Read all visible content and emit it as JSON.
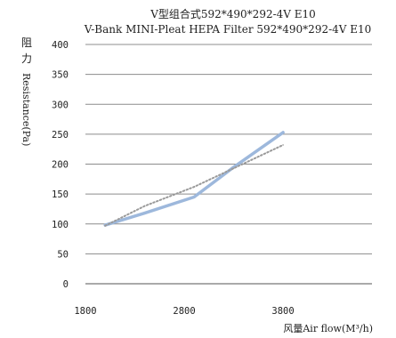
{
  "chart_data": {
    "type": "line",
    "title": "V型组合式592*490*292-4V E10",
    "subtitle": "V-Bank MINI-Pleat HEPA Filter 592*490*292-4V E10",
    "ylabel_cjk": [
      "阻",
      "力"
    ],
    "ylabel": "Resistance(Pa)",
    "xlabel": "风量Air flow(M³/h)",
    "xlim": [
      1800,
      4700
    ],
    "ylim": [
      0,
      400
    ],
    "x_ticks": [
      1800,
      2800,
      3800
    ],
    "y_ticks": [
      0,
      50,
      100,
      150,
      200,
      250,
      300,
      350,
      400
    ],
    "grid": "horizontal",
    "series": [
      {
        "style": "solid",
        "color": "#9db8dc",
        "x": [
          2000,
          2400,
          2900,
          3300,
          3800
        ],
        "y": [
          98,
          118,
          145,
          195,
          253
        ]
      },
      {
        "style": "dotted",
        "color": "#9a9a9a",
        "x": [
          2000,
          2400,
          2900,
          3300,
          3800
        ],
        "y": [
          97,
          130,
          162,
          193,
          232
        ]
      }
    ]
  }
}
